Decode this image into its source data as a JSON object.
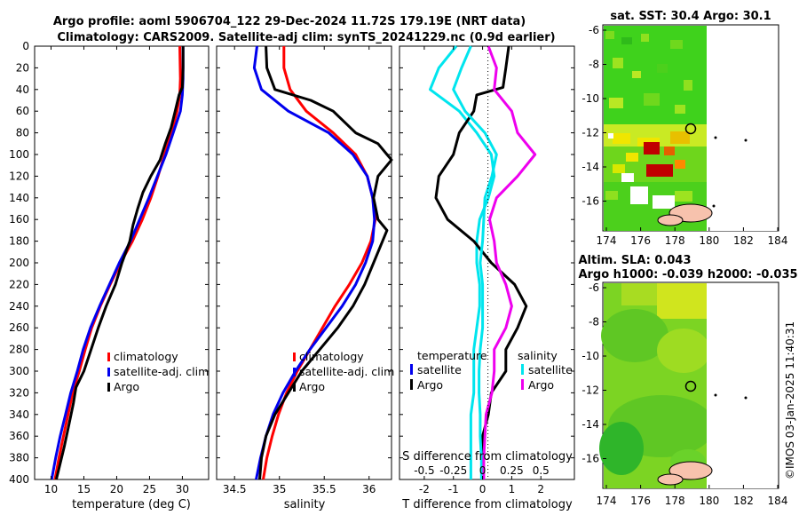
{
  "title": {
    "line1": "Argo profile: aoml 5906704_122 29-Dec-2024 11.72S 179.19E (NRT data)",
    "line2": "Climatology: CARS2009. Satellite-adj clim: synTS_20241229.nc (0.9d earlier)"
  },
  "colors": {
    "climatology": "#ff0000",
    "satellite": "#0000ee",
    "argo": "#000000",
    "sat_diff_t": "#00e5ee",
    "sal_diff": "#ee00ee"
  },
  "depth_axis": {
    "range": [
      0,
      400
    ],
    "ticks": [
      0,
      20,
      40,
      60,
      80,
      100,
      120,
      140,
      160,
      180,
      200,
      220,
      240,
      260,
      280,
      300,
      320,
      340,
      360,
      380,
      400
    ]
  },
  "legend_profiles": {
    "climatology": "climatology",
    "satellite": "satellite-adj. clim",
    "argo": "Argo"
  },
  "legend_diff": {
    "temperature_title": "temperature",
    "salinity_title": "salinity",
    "satellite": "satellite",
    "argo": "Argo"
  },
  "maps": {
    "sst_title": "sat. SST: 30.4 Argo: 30.1",
    "sla_title": "Altim. SLA: 0.043",
    "sla_subtitle": "Argo h1000: -0.039 h2000: -0.035",
    "lon_ticks": [
      "174",
      "176",
      "178",
      "180",
      "182",
      "184"
    ],
    "lat_ticks": [
      "-6",
      "-8",
      "-10",
      "-12",
      "-14",
      "-16"
    ],
    "argo_position": {
      "lon": 179.19,
      "lat": -11.72
    }
  },
  "credit": "©IMOS 03-Jan-2025 11:40:31",
  "chart_data": [
    {
      "type": "line",
      "name": "temperature",
      "xlabel": "temperature (deg C)",
      "ylabel": "depth",
      "xlim": [
        7.5,
        34
      ],
      "ylim": [
        400,
        0
      ],
      "xticks": [
        10,
        15,
        20,
        25,
        30
      ],
      "series": [
        {
          "name": "climatology",
          "color": "#ff0000",
          "depth": [
            0,
            30,
            45,
            60,
            80,
            100,
            120,
            140,
            160,
            180,
            200,
            220,
            240,
            260,
            280,
            300,
            320,
            340,
            360,
            380,
            400
          ],
          "values": [
            29.6,
            29.7,
            29.6,
            29.2,
            28.3,
            27.3,
            26.3,
            25.2,
            23.9,
            22.4,
            20.6,
            19.0,
            17.5,
            16.2,
            15.2,
            14.3,
            13.3,
            12.6,
            11.9,
            11.2,
            10.6
          ]
        },
        {
          "name": "satellite-adj. clim",
          "color": "#0000ee",
          "depth": [
            0,
            30,
            45,
            60,
            80,
            100,
            120,
            140,
            160,
            180,
            200,
            220,
            240,
            260,
            280,
            300,
            320,
            340,
            360,
            380,
            400
          ],
          "values": [
            30.1,
            30.1,
            30.0,
            29.7,
            28.6,
            27.5,
            26.2,
            24.9,
            23.5,
            22.1,
            20.4,
            18.9,
            17.4,
            16.0,
            14.9,
            14.0,
            13.0,
            12.2,
            11.4,
            10.7,
            10.1
          ]
        },
        {
          "name": "Argo",
          "color": "#000000",
          "depth": [
            0,
            20,
            38,
            45,
            60,
            75,
            90,
            105,
            120,
            135,
            150,
            165,
            180,
            200,
            220,
            240,
            260,
            280,
            300,
            315,
            330,
            350,
            370,
            390,
            400
          ],
          "values": [
            30.1,
            30.1,
            30.0,
            29.5,
            28.9,
            28.3,
            27.4,
            26.6,
            25.2,
            24.0,
            23.2,
            22.5,
            22.0,
            20.8,
            19.8,
            18.4,
            17.2,
            16.1,
            15.0,
            13.8,
            13.4,
            12.7,
            12.0,
            11.2,
            10.8
          ]
        }
      ]
    },
    {
      "type": "line",
      "name": "salinity",
      "xlabel": "salinity",
      "ylabel": "depth",
      "xlim": [
        34.3,
        36.25
      ],
      "ylim": [
        400,
        0
      ],
      "xticks": [
        34.5,
        35,
        35.5,
        36
      ],
      "series": [
        {
          "name": "climatology",
          "color": "#ff0000",
          "depth": [
            0,
            5,
            20,
            40,
            60,
            80,
            100,
            120,
            140,
            160,
            180,
            200,
            220,
            240,
            260,
            280,
            300,
            320,
            340,
            360,
            380,
            400
          ],
          "values": [
            35.05,
            35.05,
            35.05,
            35.12,
            35.3,
            35.6,
            35.85,
            35.98,
            36.04,
            36.07,
            36.02,
            35.92,
            35.78,
            35.62,
            35.48,
            35.34,
            35.2,
            35.08,
            34.99,
            34.92,
            34.86,
            34.82
          ]
        },
        {
          "name": "satellite-adj. clim",
          "color": "#0000ee",
          "depth": [
            0,
            20,
            40,
            60,
            80,
            100,
            120,
            140,
            160,
            180,
            200,
            220,
            240,
            260,
            280,
            300,
            320,
            340,
            360,
            380,
            400
          ],
          "values": [
            34.75,
            34.72,
            34.8,
            35.1,
            35.55,
            35.82,
            35.98,
            36.04,
            36.06,
            36.04,
            35.96,
            35.85,
            35.7,
            35.52,
            35.34,
            35.18,
            35.04,
            34.93,
            34.85,
            34.79,
            34.74
          ]
        },
        {
          "name": "Argo",
          "color": "#000000",
          "depth": [
            0,
            20,
            40,
            50,
            60,
            80,
            90,
            100,
            105,
            120,
            140,
            160,
            170,
            180,
            200,
            220,
            240,
            260,
            280,
            300,
            320,
            340,
            360,
            380,
            400
          ],
          "values": [
            34.85,
            34.86,
            34.95,
            35.35,
            35.6,
            35.85,
            36.1,
            36.2,
            36.25,
            36.1,
            36.05,
            36.1,
            36.2,
            36.15,
            36.05,
            35.95,
            35.82,
            35.65,
            35.45,
            35.25,
            35.1,
            34.95,
            34.85,
            34.8,
            34.78
          ]
        }
      ]
    },
    {
      "type": "line",
      "name": "difference from climatology",
      "xlabel": "T difference from climatology",
      "x2label": "S difference from climatology",
      "ylabel": "depth",
      "xlim": [
        -2.85,
        3.15
      ],
      "x2lim": [
        -0.7125,
        0.7875
      ],
      "ylim": [
        400,
        0
      ],
      "xticks": [
        -2,
        -1,
        0,
        1,
        2
      ],
      "x2ticks": [
        -0.5,
        -0.25,
        0,
        0.25,
        0.5
      ],
      "series": [
        {
          "name": "temperature satellite",
          "color": "#00e5ee",
          "axis": "T",
          "depth": [
            0,
            20,
            40,
            60,
            80,
            100,
            120,
            140,
            160,
            180,
            200,
            220,
            240,
            260,
            280,
            300,
            320,
            340,
            360,
            380,
            400
          ],
          "values": [
            -0.9,
            -1.5,
            -1.8,
            -0.8,
            -0.2,
            0.3,
            0.4,
            0.2,
            -0.1,
            -0.2,
            -0.2,
            -0.1,
            -0.1,
            -0.2,
            -0.3,
            -0.3,
            -0.3,
            -0.4,
            -0.4,
            -0.4,
            -0.4
          ]
        },
        {
          "name": "temperature Argo",
          "color": "#000000",
          "axis": "T",
          "depth": [
            0,
            20,
            38,
            45,
            60,
            80,
            100,
            120,
            140,
            160,
            180,
            200,
            220,
            240,
            260,
            280,
            300,
            320,
            340,
            360,
            380,
            400
          ],
          "values": [
            0.9,
            0.8,
            0.7,
            -0.2,
            -0.3,
            -0.8,
            -1.0,
            -1.5,
            -1.6,
            -1.2,
            -0.3,
            0.3,
            1.1,
            1.5,
            1.2,
            0.8,
            0.8,
            0.3,
            0.2,
            0.0,
            0.0,
            0.0
          ]
        },
        {
          "name": "salinity satellite",
          "color": "#00e5ee",
          "axis": "S",
          "depth": [
            0,
            20,
            40,
            60,
            80,
            100,
            120,
            140,
            160,
            180,
            200,
            220,
            240,
            260,
            280,
            300,
            320,
            340,
            360,
            380,
            400
          ],
          "values": [
            -0.1,
            -0.18,
            -0.25,
            -0.15,
            0.02,
            0.12,
            0.08,
            0.02,
            0.01,
            0.0,
            -0.02,
            0.0,
            0.0,
            0.0,
            -0.02,
            -0.03,
            -0.03,
            -0.02,
            -0.02,
            -0.01,
            -0.01
          ]
        },
        {
          "name": "salinity Argo",
          "color": "#ee00ee",
          "axis": "S",
          "depth": [
            0,
            20,
            40,
            60,
            80,
            100,
            120,
            140,
            160,
            180,
            200,
            220,
            240,
            260,
            280,
            300,
            320,
            340,
            360,
            380,
            400
          ],
          "values": [
            0.05,
            0.12,
            0.1,
            0.25,
            0.3,
            0.45,
            0.3,
            0.12,
            0.06,
            0.1,
            0.12,
            0.2,
            0.25,
            0.2,
            0.1,
            0.1,
            0.08,
            0.03,
            0.02,
            0.01,
            0.01
          ]
        }
      ]
    }
  ]
}
